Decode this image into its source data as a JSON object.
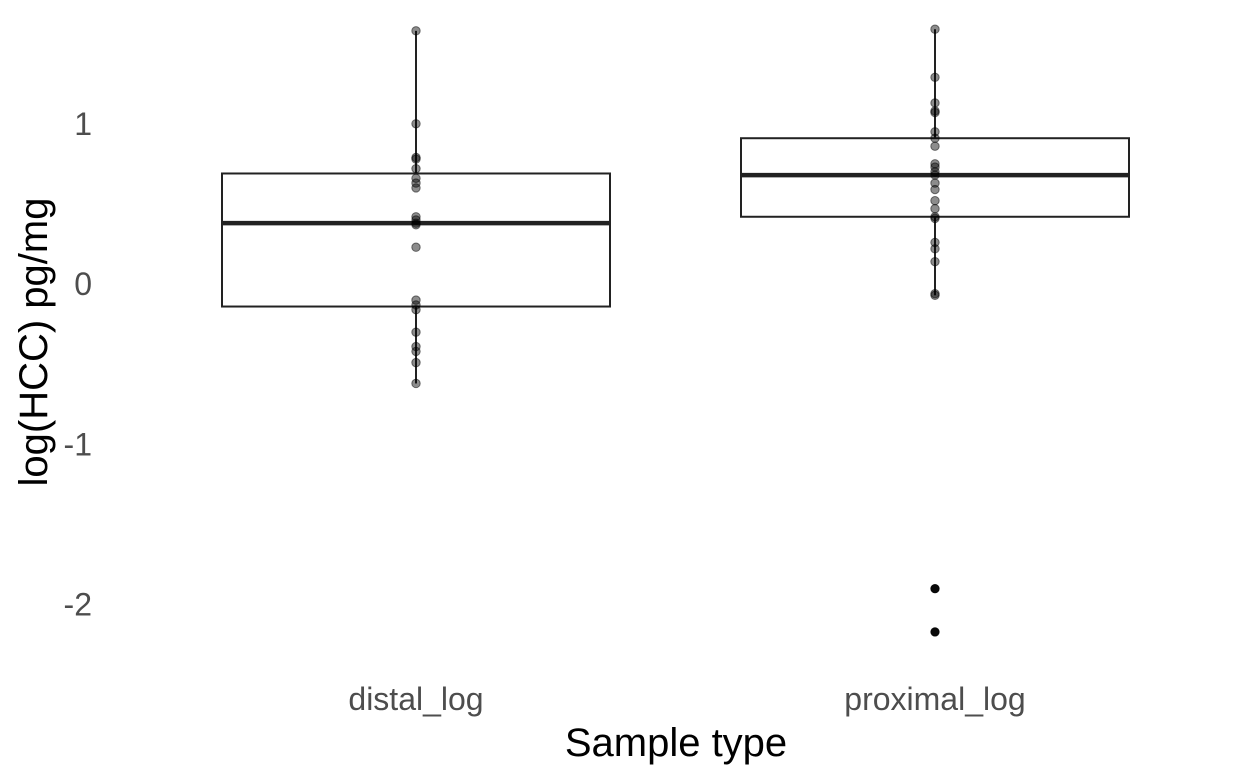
{
  "chart_data": {
    "type": "boxplot",
    "title": "",
    "xlabel": "Sample type",
    "ylabel": "log(HCC) pg/mg",
    "categories": [
      "distal_log",
      "proximal_log"
    ],
    "ylim": [
      -2.42,
      1.66
    ],
    "y_ticks": [
      {
        "value": -2,
        "label": "-2"
      },
      {
        "value": -1,
        "label": "-1"
      },
      {
        "value": 0,
        "label": "0"
      },
      {
        "value": 1,
        "label": "1"
      }
    ],
    "grid": false,
    "legend": "none",
    "colors": {
      "box": "#222222",
      "point": "#000000",
      "text": "#4d4d4d"
    },
    "boxes": [
      {
        "category": "distal_log",
        "q1": -0.14,
        "median": 0.38,
        "q3": 0.69,
        "whisker_low": -0.62,
        "whisker_high": 1.58,
        "outliers": [],
        "points": [
          1.58,
          1.0,
          0.79,
          0.78,
          0.72,
          0.66,
          0.63,
          0.6,
          0.42,
          0.4,
          0.38,
          0.37,
          0.23,
          -0.1,
          -0.13,
          -0.16,
          -0.3,
          -0.39,
          -0.42,
          -0.49,
          -0.62
        ]
      },
      {
        "category": "proximal_log",
        "q1": 0.42,
        "median": 0.68,
        "q3": 0.91,
        "whisker_low": -0.07,
        "whisker_high": 1.59,
        "outliers": [
          -1.9,
          -2.17
        ],
        "points": [
          1.59,
          1.29,
          1.13,
          1.08,
          1.07,
          0.95,
          0.91,
          0.86,
          0.75,
          0.73,
          0.7,
          0.68,
          0.63,
          0.59,
          0.52,
          0.47,
          0.42,
          0.41,
          0.26,
          0.22,
          0.14,
          -0.06,
          -0.07,
          -1.9,
          -2.17
        ]
      }
    ]
  }
}
